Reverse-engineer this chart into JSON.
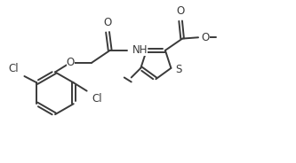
{
  "bg_color": "#ffffff",
  "line_color": "#3a3a3a",
  "line_width": 1.4,
  "font_size": 8.5,
  "fig_width": 3.33,
  "fig_height": 1.84,
  "dpi": 100,
  "xlim": [
    0,
    10
  ],
  "ylim": [
    0,
    5.5
  ]
}
